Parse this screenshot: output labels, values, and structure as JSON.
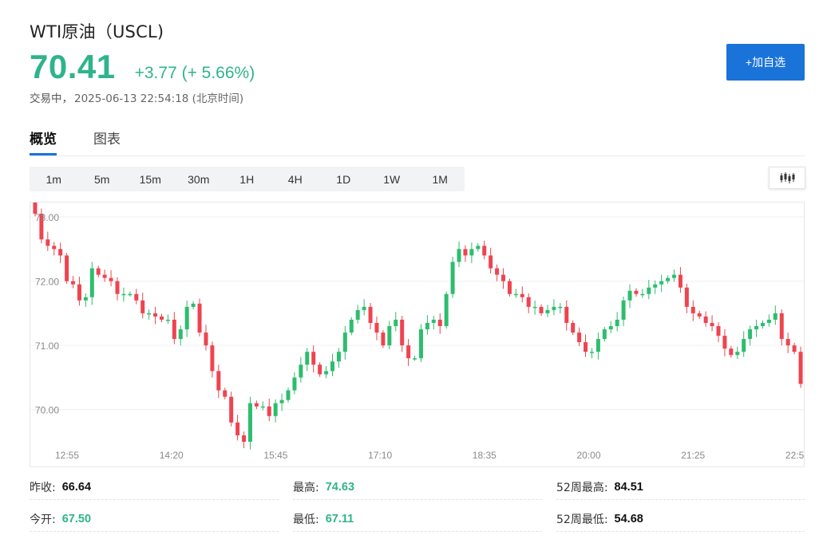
{
  "header": {
    "title": "WTI原油（USCL)",
    "price": "70.41",
    "change": "+3.77 (+ 5.66%)",
    "status_label": "交易中，",
    "timestamp": "2025-06-13 22:54:18 (北京时间)",
    "add_button": "+加自选"
  },
  "tabs": [
    {
      "label": "概览",
      "active": true
    },
    {
      "label": "图表",
      "active": false
    }
  ],
  "periods": [
    {
      "label": "1m",
      "active": false
    },
    {
      "label": "5m",
      "active": true
    },
    {
      "label": "15m",
      "active": false
    },
    {
      "label": "30m",
      "active": false
    },
    {
      "label": "1H",
      "active": false
    },
    {
      "label": "4H",
      "active": false
    },
    {
      "label": "1D",
      "active": false
    },
    {
      "label": "1W",
      "active": false
    },
    {
      "label": "1M",
      "active": false
    }
  ],
  "chart_type_icon": "candlestick-icon",
  "colors": {
    "up": "#2dbd6e",
    "down": "#ee4450",
    "accent": "#1a73d9",
    "price": "#2fb48a"
  },
  "chart_data": {
    "type": "candlestick",
    "ylim": [
      69.5,
      73.1
    ],
    "yticks": [
      {
        "value": 73.0,
        "label": "73.00"
      },
      {
        "value": 72.0,
        "label": "72.00"
      },
      {
        "value": 71.0,
        "label": "71.00"
      },
      {
        "value": 70.0,
        "label": "70.00"
      }
    ],
    "xticks": [
      "12:55",
      "14:20",
      "15:45",
      "17:10",
      "18:35",
      "20:00",
      "21:25",
      "22:5"
    ],
    "closes": [
      73.05,
      72.65,
      72.55,
      72.5,
      72.4,
      72.0,
      71.95,
      71.7,
      71.75,
      72.2,
      72.1,
      72.05,
      72.0,
      71.8,
      71.8,
      71.8,
      71.7,
      71.5,
      71.5,
      71.45,
      71.4,
      71.4,
      71.1,
      71.25,
      71.6,
      71.65,
      71.2,
      71.0,
      70.6,
      70.3,
      70.2,
      69.8,
      69.6,
      69.5,
      70.1,
      70.05,
      70.05,
      69.9,
      70.1,
      70.15,
      70.3,
      70.5,
      70.7,
      70.9,
      70.7,
      70.55,
      70.6,
      70.75,
      70.9,
      71.2,
      71.4,
      71.55,
      71.6,
      71.35,
      71.2,
      71.0,
      71.3,
      71.4,
      71.0,
      70.8,
      70.8,
      71.25,
      71.35,
      71.4,
      71.3,
      71.8,
      72.3,
      72.5,
      72.4,
      72.5,
      72.55,
      72.4,
      72.2,
      72.1,
      72.0,
      71.8,
      71.8,
      71.75,
      71.6,
      71.6,
      71.5,
      71.55,
      71.6,
      71.6,
      71.35,
      71.2,
      71.05,
      70.9,
      70.9,
      71.1,
      71.25,
      71.3,
      71.4,
      71.7,
      71.85,
      71.8,
      71.8,
      71.9,
      71.95,
      72.0,
      72.05,
      72.1,
      71.9,
      71.6,
      71.5,
      71.45,
      71.35,
      71.3,
      71.15,
      70.95,
      70.85,
      70.9,
      71.1,
      71.25,
      71.3,
      71.35,
      71.4,
      71.5,
      71.1,
      71.0,
      70.9,
      70.4
    ]
  },
  "stats": [
    {
      "label": "昨收:",
      "value": "66.64",
      "tone": "dark"
    },
    {
      "label": "最高:",
      "value": "74.63",
      "tone": "green"
    },
    {
      "label": "52周最高:",
      "value": "84.51",
      "tone": "dark"
    },
    {
      "label": "今开:",
      "value": "67.50",
      "tone": "green"
    },
    {
      "label": "最低:",
      "value": "67.11",
      "tone": "green"
    },
    {
      "label": "52周最低:",
      "value": "54.68",
      "tone": "dark"
    }
  ]
}
